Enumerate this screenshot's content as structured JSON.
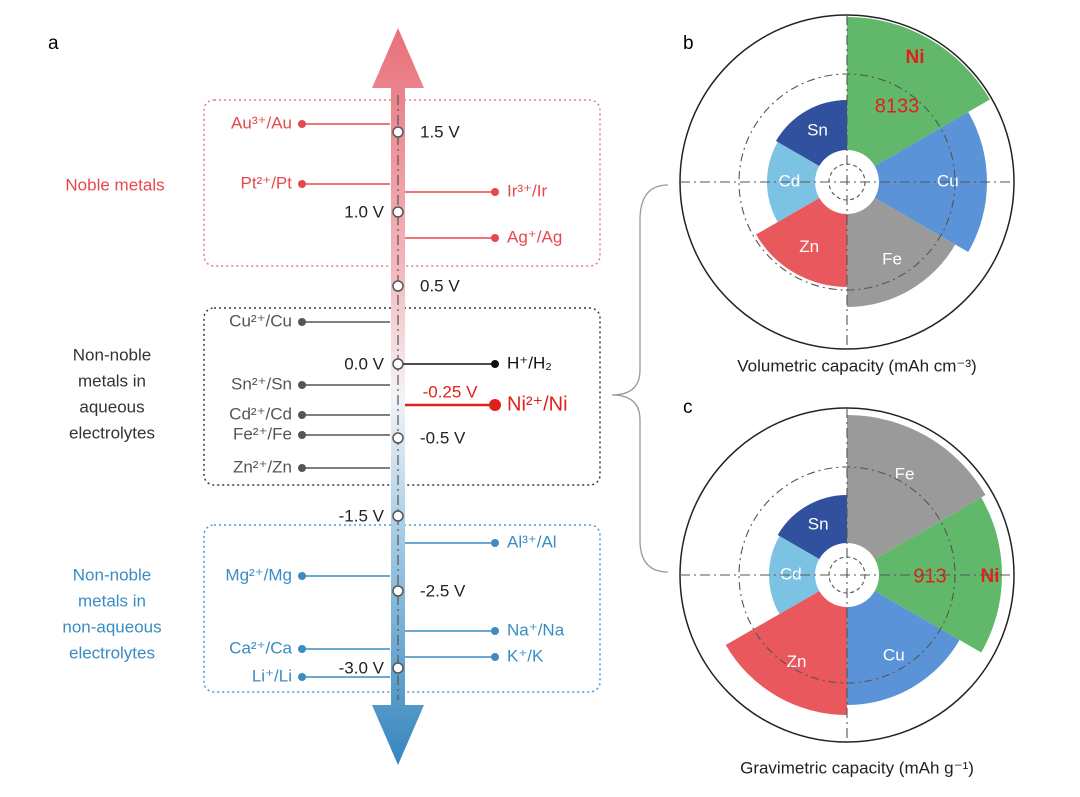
{
  "panel_a": {
    "label": "a",
    "groups": [
      {
        "lines": [
          "Noble metals"
        ]
      },
      {
        "lines": [
          "Non-noble",
          "metals in",
          "aqueous",
          "electrolytes"
        ]
      },
      {
        "lines": [
          "Non-noble",
          "metals in",
          "non-aqueous",
          "electrolytes"
        ]
      }
    ],
    "potentials": [
      "1.5 V",
      "1.0 V",
      "0.5 V",
      "0.0 V",
      "-0.5 V",
      "-1.5 V",
      "-2.5 V",
      "-3.0 V"
    ],
    "nickel_potential": "-0.25 V",
    "couples": [
      "Au³⁺/Au",
      "Pt²⁺/Pt",
      "Ir³⁺/Ir",
      "Ag⁺/Ag",
      "Cu²⁺/Cu",
      "H⁺/H₂",
      "Sn²⁺/Sn",
      "Ni²⁺/Ni",
      "Cd²⁺/Cd",
      "Fe²⁺/Fe",
      "Zn²⁺/Zn",
      "Al³⁺/Al",
      "Mg²⁺/Mg",
      "Na⁺/Na",
      "Ca²⁺/Ca",
      "K⁺/K",
      "Li⁺/Li"
    ]
  },
  "panel_b": {
    "label": "b",
    "caption": "Volumetric capacity (mAh cm⁻³)",
    "segments": [
      "Ni",
      "Cu",
      "Fe",
      "Zn",
      "Cd",
      "Sn"
    ],
    "nickel_value": 8133
  },
  "panel_c": {
    "label": "c",
    "caption": "Gravimetric capacity (mAh g⁻¹)",
    "segments": [
      "Fe",
      "Ni",
      "Cu",
      "Zn",
      "Cd",
      "Sn"
    ],
    "nickel_value": 913
  }
}
